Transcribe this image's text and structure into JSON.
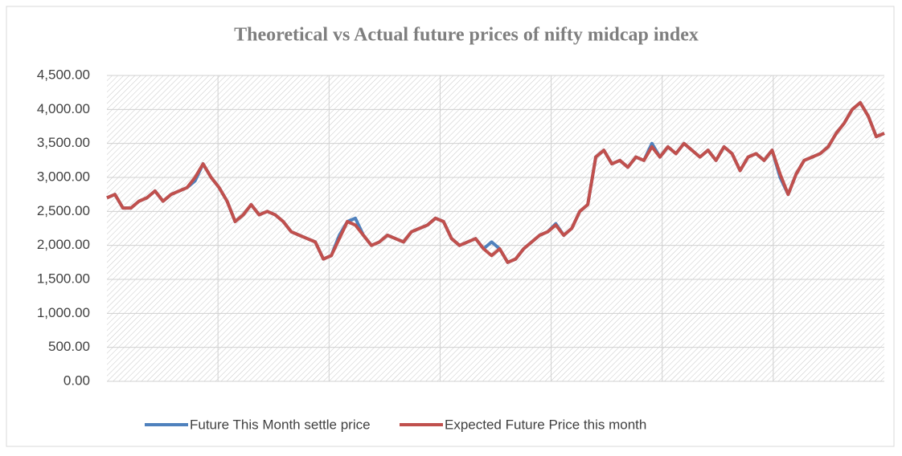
{
  "chart_data": {
    "type": "line",
    "title": "Theoretical vs Actual future prices of nifty midcap index",
    "categories": [
      null,
      null,
      null,
      null,
      null,
      null,
      null,
      null,
      null,
      null,
      null,
      null,
      null,
      null,
      null,
      null,
      null,
      null,
      null,
      null,
      null,
      null,
      null,
      null,
      null,
      null,
      null,
      null,
      null,
      null,
      null,
      null,
      null,
      null,
      null,
      null,
      null,
      null,
      null,
      null,
      null,
      null,
      null,
      null,
      null,
      null,
      null,
      null,
      null,
      null,
      null,
      null,
      null,
      null,
      null,
      null,
      null,
      null,
      null,
      null,
      null,
      null,
      null,
      null,
      null,
      null,
      null,
      null,
      null,
      null,
      null,
      null,
      null,
      null,
      null,
      null,
      null,
      null,
      null,
      null,
      null,
      null,
      null,
      null,
      null,
      null,
      null,
      null,
      null,
      null,
      null,
      null,
      null,
      null,
      null,
      null,
      null,
      null
    ],
    "series": [
      {
        "name": "Future This Month settle price",
        "color": "#4f81bd",
        "values": [
          2700,
          2750,
          2550,
          2550,
          2650,
          2700,
          2800,
          2650,
          2750,
          2800,
          2850,
          2950,
          3200,
          3000,
          2850,
          2650,
          2350,
          2450,
          2600,
          2450,
          2500,
          2450,
          2350,
          2200,
          2150,
          2100,
          2050,
          1800,
          1850,
          2150,
          2350,
          2400,
          2150,
          2000,
          2050,
          2150,
          2100,
          2050,
          2200,
          2250,
          2300,
          2400,
          2350,
          2100,
          2000,
          2050,
          2100,
          1950,
          2050,
          1950,
          1750,
          1800,
          1950,
          2050,
          2150,
          2200,
          2320,
          2150,
          2250,
          2500,
          2600,
          3300,
          3400,
          3200,
          3250,
          3150,
          3300,
          3250,
          3500,
          3300,
          3450,
          3350,
          3500,
          3400,
          3300,
          3400,
          3250,
          3450,
          3350,
          3100,
          3300,
          3350,
          3250,
          3400,
          3000,
          2750,
          3050,
          3250,
          3300,
          3350,
          3450,
          3650,
          3800,
          4000,
          4100,
          3900,
          3600,
          3650
        ]
      },
      {
        "name": "Expected Future Price this month",
        "color": "#c0504d",
        "values": [
          2700,
          2750,
          2550,
          2550,
          2650,
          2700,
          2800,
          2650,
          2750,
          2800,
          2850,
          3000,
          3200,
          3000,
          2850,
          2650,
          2350,
          2450,
          2600,
          2450,
          2500,
          2450,
          2350,
          2200,
          2150,
          2100,
          2050,
          1800,
          1850,
          2100,
          2350,
          2300,
          2150,
          2000,
          2050,
          2150,
          2100,
          2050,
          2200,
          2250,
          2300,
          2400,
          2350,
          2100,
          2000,
          2050,
          2100,
          1950,
          1850,
          1950,
          1750,
          1800,
          1950,
          2050,
          2150,
          2200,
          2300,
          2150,
          2250,
          2500,
          2600,
          3300,
          3400,
          3200,
          3250,
          3150,
          3300,
          3250,
          3450,
          3300,
          3450,
          3350,
          3500,
          3400,
          3300,
          3400,
          3250,
          3450,
          3350,
          3100,
          3300,
          3350,
          3250,
          3400,
          3050,
          2750,
          3050,
          3250,
          3300,
          3350,
          3450,
          3650,
          3800,
          4000,
          4100,
          3900,
          3600,
          3650
        ]
      }
    ],
    "ylim": [
      0,
      4500
    ],
    "yticks": [
      {
        "value": 0,
        "label": "0.00"
      },
      {
        "value": 500,
        "label": "500.00"
      },
      {
        "value": 1000,
        "label": "1,000.00"
      },
      {
        "value": 1500,
        "label": "1,500.00"
      },
      {
        "value": 2000,
        "label": "2,000.00"
      },
      {
        "value": 2500,
        "label": "2,500.00"
      },
      {
        "value": 3000,
        "label": "3,000.00"
      },
      {
        "value": 3500,
        "label": "3,500.00"
      },
      {
        "value": 4000,
        "label": "4,000.00"
      },
      {
        "value": 4500,
        "label": "4,500.00"
      }
    ],
    "grid": true
  }
}
